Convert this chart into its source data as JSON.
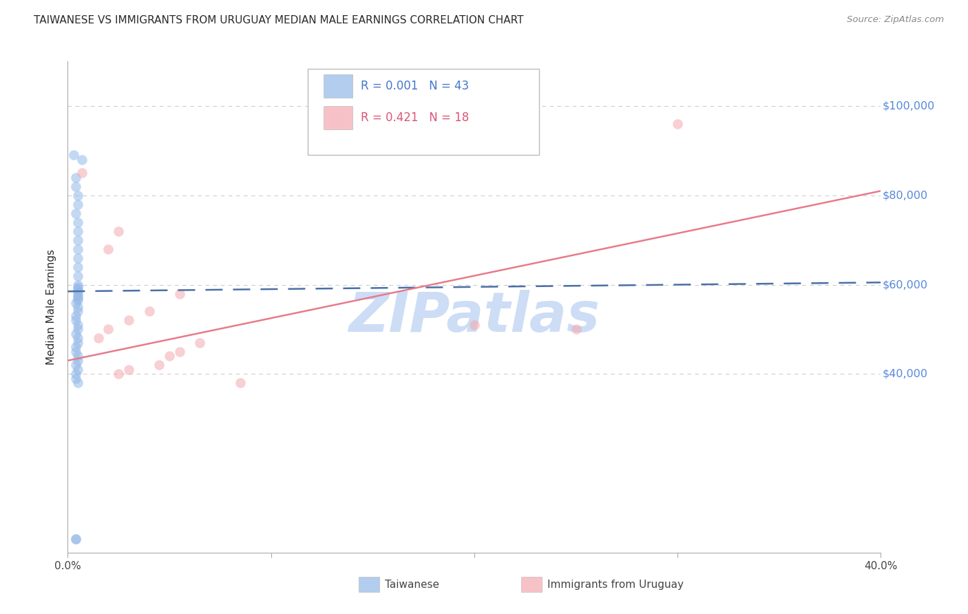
{
  "title": "TAIWANESE VS IMMIGRANTS FROM URUGUAY MEDIAN MALE EARNINGS CORRELATION CHART",
  "source": "Source: ZipAtlas.com",
  "ylabel": "Median Male Earnings",
  "watermark": "ZIPatlas",
  "xlim": [
    0.0,
    0.4
  ],
  "ylim": [
    0,
    110000
  ],
  "xtick_values": [
    0.0,
    0.1,
    0.2,
    0.3,
    0.4
  ],
  "xtick_labels": [
    "0.0%",
    "",
    "",
    "",
    "40.0%"
  ],
  "ytick_values": [
    40000,
    60000,
    80000,
    100000
  ],
  "ytick_labels": [
    "$40,000",
    "$60,000",
    "$80,000",
    "$100,000"
  ],
  "legend1_r": "0.001",
  "legend1_n": "43",
  "legend2_r": "0.421",
  "legend2_n": "18",
  "legend_label1": "Taiwanese",
  "legend_label2": "Immigrants from Uruguay",
  "blue_scatter_color": "#93b8e8",
  "pink_scatter_color": "#f4a8b0",
  "blue_line_color": "#4a6fa5",
  "pink_line_color": "#e87a8a",
  "title_color": "#2a2a2a",
  "ylabel_color": "#2a2a2a",
  "ytick_color": "#5588dd",
  "xtick_color": "#444444",
  "watermark_color": "#ccddf5",
  "grid_color": "#cccccc",
  "legend_r1_color": "#4477cc",
  "legend_r2_color": "#dd5577",
  "scatter_blue_x": [
    0.003,
    0.007,
    0.004,
    0.004,
    0.005,
    0.005,
    0.004,
    0.005,
    0.005,
    0.005,
    0.005,
    0.005,
    0.005,
    0.005,
    0.005,
    0.005,
    0.005,
    0.005,
    0.005,
    0.005,
    0.005,
    0.005,
    0.004,
    0.005,
    0.005,
    0.004,
    0.004,
    0.005,
    0.005,
    0.004,
    0.005,
    0.005,
    0.004,
    0.004,
    0.005,
    0.005,
    0.004,
    0.005,
    0.004,
    0.004,
    0.005,
    0.004,
    0.004
  ],
  "scatter_blue_y": [
    89000,
    88000,
    84000,
    82000,
    80000,
    78000,
    76000,
    74000,
    72000,
    70000,
    68000,
    66000,
    64000,
    62000,
    60000,
    59500,
    59000,
    58500,
    58000,
    57500,
    57000,
    56500,
    56000,
    55000,
    54000,
    53000,
    52000,
    51000,
    50000,
    49000,
    48000,
    47000,
    46000,
    45000,
    44000,
    43000,
    42000,
    41000,
    40000,
    39000,
    38000,
    3000,
    3000
  ],
  "scatter_pink_x": [
    0.007,
    0.025,
    0.02,
    0.055,
    0.04,
    0.03,
    0.02,
    0.015,
    0.065,
    0.055,
    0.05,
    0.045,
    0.03,
    0.025,
    0.085,
    0.25,
    0.2,
    0.3
  ],
  "scatter_pink_y": [
    85000,
    72000,
    68000,
    58000,
    54000,
    52000,
    50000,
    48000,
    47000,
    45000,
    44000,
    42000,
    41000,
    40000,
    38000,
    50000,
    51000,
    96000
  ],
  "blue_trend_x": [
    0.0,
    0.4
  ],
  "blue_trend_y": [
    58500,
    60500
  ],
  "pink_trend_x": [
    0.0,
    0.4
  ],
  "pink_trend_y": [
    43000,
    81000
  ]
}
